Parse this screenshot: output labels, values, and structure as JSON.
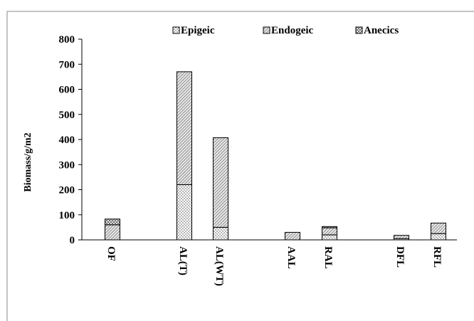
{
  "chart_data": {
    "type": "bar",
    "stacked": true,
    "title": "",
    "xlabel": "",
    "ylabel": "Biomass/g/m2",
    "ylim": [
      0,
      800
    ],
    "yticks": [
      0,
      100,
      200,
      300,
      400,
      500,
      600,
      700,
      800
    ],
    "grid": false,
    "legend_position": "top",
    "categories": [
      "OF",
      "AL(T)",
      "AL(WT)",
      "AAL",
      "RAL",
      "DFL",
      "RFL"
    ],
    "series": [
      {
        "name": "Epigeic",
        "pattern": "dots",
        "values": [
          0,
          220,
          50,
          0,
          20,
          5,
          25
        ]
      },
      {
        "name": "Endogeic",
        "pattern": "diagonal-dense",
        "values": [
          60,
          450,
          357,
          30,
          28,
          13,
          42
        ]
      },
      {
        "name": "Anecics",
        "pattern": "crosshatch",
        "values": [
          23,
          0,
          0,
          0,
          5,
          0,
          0
        ]
      }
    ],
    "colors": {
      "stroke": "#000000",
      "fill": "#ffffff",
      "pattern": "#555555"
    }
  }
}
